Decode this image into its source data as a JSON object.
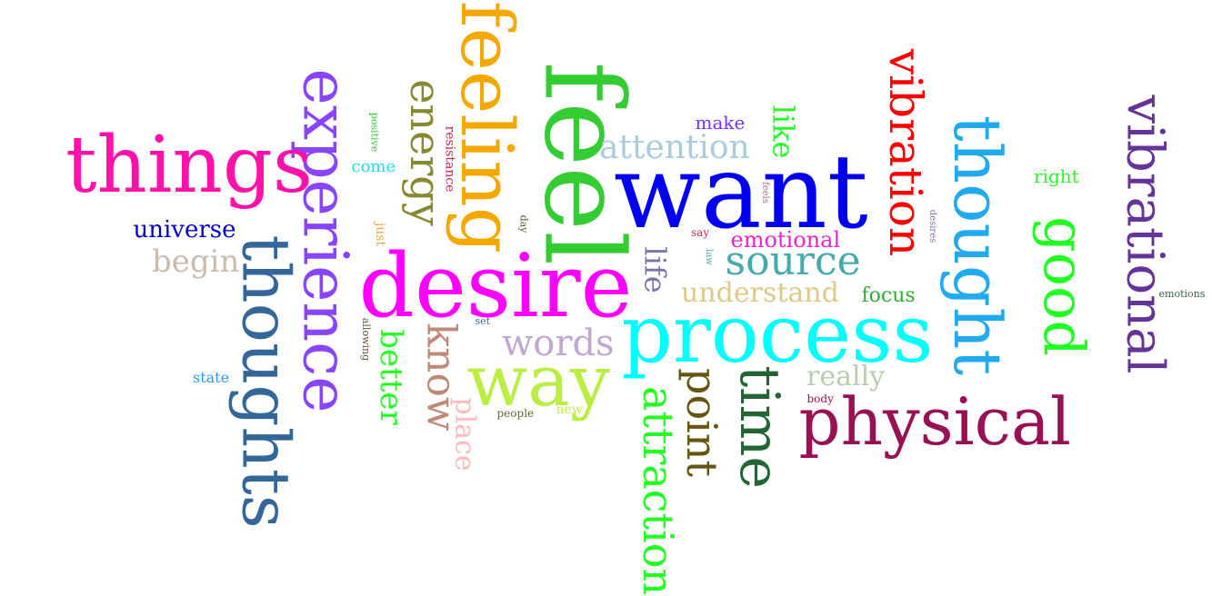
{
  "words": [
    {
      "text": "want",
      "color": "#0000ee",
      "vertical": false
    },
    {
      "text": "desire",
      "color": "#ff00ff",
      "vertical": false
    },
    {
      "text": "process",
      "color": "#00ffff",
      "vertical": false
    },
    {
      "text": "feel",
      "color": "#33cc33",
      "vertical": true
    },
    {
      "text": "feeling",
      "color": "#f5a800",
      "vertical": true
    },
    {
      "text": "experience",
      "color": "#8844ff",
      "vertical": true
    },
    {
      "text": "thoughts",
      "color": "#336699",
      "vertical": true
    },
    {
      "text": "thought",
      "color": "#22aaee",
      "vertical": true
    },
    {
      "text": "things",
      "color": "#ff11aa",
      "vertical": false
    },
    {
      "text": "physical",
      "color": "#991155",
      "vertical": false
    },
    {
      "text": "vibrational",
      "color": "#663399",
      "vertical": true
    },
    {
      "text": "vibration",
      "color": "#ff0000",
      "vertical": true
    },
    {
      "text": "good",
      "color": "#22ff22",
      "vertical": true
    },
    {
      "text": "way",
      "color": "#bbee44",
      "vertical": false
    },
    {
      "text": "time",
      "color": "#226633",
      "vertical": true
    },
    {
      "text": "source",
      "color": "#44aaaa",
      "vertical": false
    },
    {
      "text": "energy",
      "color": "#888833",
      "vertical": true
    },
    {
      "text": "attraction",
      "color": "#22ff22",
      "vertical": true
    },
    {
      "text": "point",
      "color": "#665511",
      "vertical": true
    },
    {
      "text": "know",
      "color": "#c08877",
      "vertical": true
    },
    {
      "text": "words",
      "color": "#c0a8d0",
      "vertical": false
    },
    {
      "text": "attention",
      "color": "#aaccdd",
      "vertical": false
    },
    {
      "text": "understand",
      "color": "#e0c888",
      "vertical": false
    },
    {
      "text": "life",
      "color": "#7777aa",
      "vertical": true
    },
    {
      "text": "like",
      "color": "#22ff22",
      "vertical": true
    },
    {
      "text": "better",
      "color": "#22ff22",
      "vertical": true
    },
    {
      "text": "really",
      "color": "#bbccaa",
      "vertical": false
    },
    {
      "text": "universe",
      "color": "#0000cc",
      "vertical": false
    },
    {
      "text": "begin",
      "color": "#ccbbaa",
      "vertical": false
    },
    {
      "text": "place",
      "color": "#ffbbbb",
      "vertical": true
    },
    {
      "text": "emotional",
      "color": "#ee22cc",
      "vertical": false
    },
    {
      "text": "focus",
      "color": "#33aa33",
      "vertical": false
    },
    {
      "text": "make",
      "color": "#7733ee",
      "vertical": false
    },
    {
      "text": "right",
      "color": "#22ff22",
      "vertical": false
    },
    {
      "text": "come",
      "color": "#22ddee",
      "vertical": false
    },
    {
      "text": "state",
      "color": "#3399ee",
      "vertical": false
    },
    {
      "text": "resistance",
      "color": "#cc2244",
      "vertical": true
    },
    {
      "text": "new",
      "color": "#bbee44",
      "vertical": false
    },
    {
      "text": "just",
      "color": "#ddaa44",
      "vertical": true
    },
    {
      "text": "people",
      "color": "#666633",
      "vertical": false
    },
    {
      "text": "body",
      "color": "#991155",
      "vertical": false
    },
    {
      "text": "say",
      "color": "#cc2244",
      "vertical": false
    },
    {
      "text": "positive",
      "color": "#33cc33",
      "vertical": true
    },
    {
      "text": "allowing",
      "color": "#665533",
      "vertical": true
    },
    {
      "text": "set",
      "color": "#446688",
      "vertical": false
    },
    {
      "text": "day",
      "color": "#665533",
      "vertical": true
    },
    {
      "text": "law",
      "color": "#44aaaa",
      "vertical": true
    },
    {
      "text": "feels",
      "color": "#aa6688",
      "vertical": true
    },
    {
      "text": "desires",
      "color": "#8866aa",
      "vertical": true
    },
    {
      "text": "emotions",
      "color": "#336644",
      "vertical": false
    }
  ]
}
